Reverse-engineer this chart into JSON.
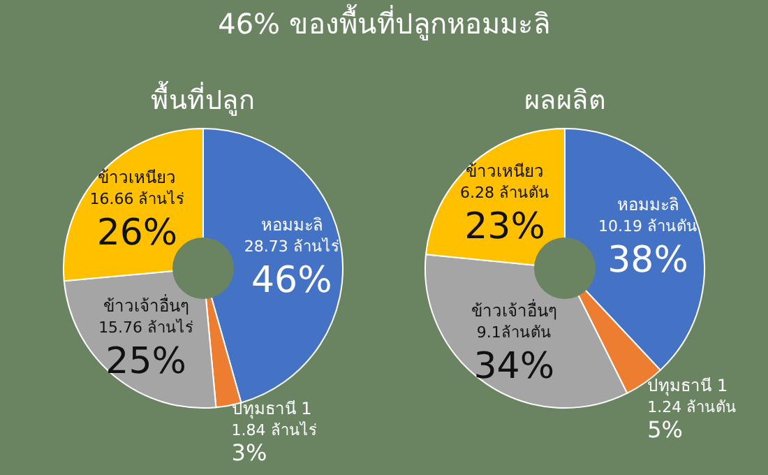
{
  "chart_data": [
    {
      "type": "donut",
      "title": "46% ของพื้นที่ปลูกหอมมะลิ",
      "subtitle": "พื้นที่ปลูก",
      "categories": [
        "หอมมะลิ",
        "ปทุมธานี 1",
        "ข้าวเจ้าอื่นๆ",
        "ข้าวเหนียว"
      ],
      "values": [
        28.73,
        1.84,
        15.76,
        16.66
      ],
      "value_labels": [
        "28.73 ล้านไร่\n46%",
        "1.84 ล้านไร่\n3%",
        "15.76 ล้านไร่\n25%",
        "16.66 ล้านไร่\n26%"
      ],
      "colors": [
        "#4472c4",
        "#ed7d31",
        "#a5a5a5",
        "#ffc000"
      ],
      "legend": false
    },
    {
      "type": "donut",
      "subtitle": "ผลผลิต",
      "categories": [
        "หอมมะลิ",
        "ปทุมธานี 1",
        "ข้าวเจ้าอื่นๆ",
        "ข้าวเหนียว"
      ],
      "values": [
        10.19,
        1.24,
        9.1,
        6.28
      ],
      "value_labels": [
        "10.19 ล้านตัน\n38%",
        "1.24 ล้านตัน\n5%",
        "9.1ล้านตัน\n34%",
        "6.28 ล้านตัน\n23%"
      ],
      "colors": [
        "#4472c4",
        "#ed7d31",
        "#a5a5a5",
        "#ffc000"
      ],
      "legend": false
    }
  ]
}
